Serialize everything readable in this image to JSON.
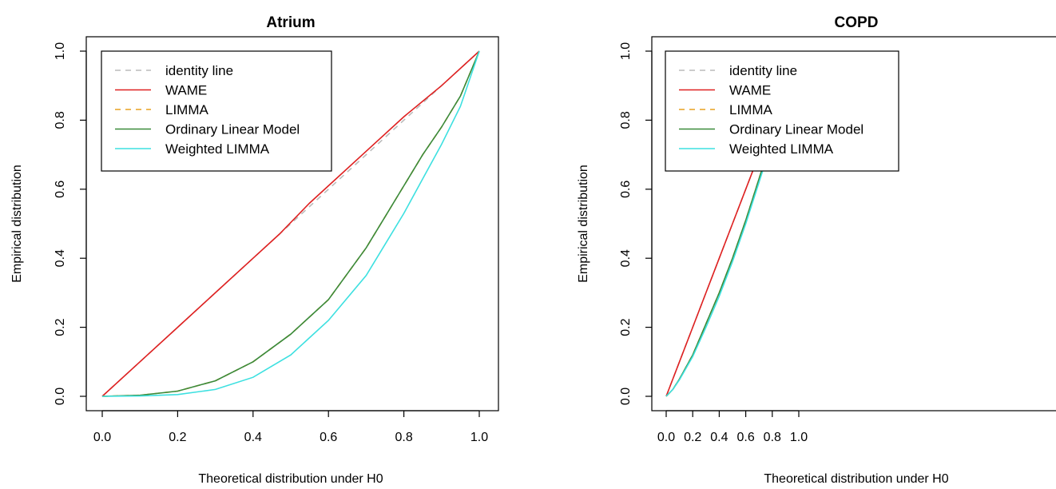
{
  "chart_data": [
    {
      "type": "line",
      "title": "Atrium",
      "xlabel": "Theoretical distribution under H0",
      "ylabel": "Empirical distribution",
      "xlim": [
        0,
        1
      ],
      "ylim": [
        0,
        1
      ],
      "x_ticks": [
        "0.0",
        "0.2",
        "0.4",
        "0.6",
        "0.8",
        "1.0"
      ],
      "y_ticks": [
        "0.0",
        "0.2",
        "0.4",
        "0.6",
        "0.8",
        "1.0"
      ],
      "legend_position": "top-left",
      "series": [
        {
          "name": "identity line",
          "color": "#bbbbbb",
          "dash": "dashed",
          "x": [
            0,
            1
          ],
          "y": [
            0,
            1
          ]
        },
        {
          "name": "WAME",
          "color": "#df2020",
          "dash": "solid",
          "x": [
            0,
            0.1,
            0.2,
            0.3,
            0.4,
            0.47,
            0.55,
            0.6,
            0.7,
            0.8,
            0.9,
            1.0
          ],
          "y": [
            0,
            0.1,
            0.2,
            0.3,
            0.4,
            0.47,
            0.56,
            0.61,
            0.71,
            0.81,
            0.9,
            1.0
          ]
        },
        {
          "name": "LIMMA",
          "color": "#e8a020",
          "dash": "dashed",
          "x": [
            0,
            0.1,
            0.2,
            0.3,
            0.4,
            0.5,
            0.6,
            0.7,
            0.75,
            0.8,
            0.85,
            0.9,
            0.95,
            1.0
          ],
          "y": [
            0,
            0.003,
            0.015,
            0.045,
            0.1,
            0.18,
            0.28,
            0.43,
            0.52,
            0.61,
            0.7,
            0.78,
            0.87,
            1.0
          ]
        },
        {
          "name": "Ordinary Linear Model",
          "color": "#3a8a3a",
          "dash": "solid",
          "x": [
            0,
            0.1,
            0.2,
            0.3,
            0.4,
            0.5,
            0.6,
            0.7,
            0.75,
            0.8,
            0.85,
            0.9,
            0.95,
            1.0
          ],
          "y": [
            0,
            0.003,
            0.015,
            0.045,
            0.1,
            0.18,
            0.28,
            0.43,
            0.52,
            0.61,
            0.7,
            0.78,
            0.87,
            1.0
          ]
        },
        {
          "name": "Weighted LIMMA",
          "color": "#3de0e0",
          "dash": "solid",
          "x": [
            0,
            0.1,
            0.2,
            0.3,
            0.4,
            0.5,
            0.6,
            0.7,
            0.75,
            0.8,
            0.85,
            0.9,
            0.95,
            1.0
          ],
          "y": [
            0,
            0.001,
            0.005,
            0.02,
            0.055,
            0.12,
            0.22,
            0.35,
            0.44,
            0.53,
            0.63,
            0.73,
            0.84,
            1.0
          ]
        }
      ]
    },
    {
      "type": "line",
      "title": "COPD",
      "xlabel": "Theoretical distribution under H0",
      "ylabel": "Empirical distribution",
      "xlim": [
        0,
        1
      ],
      "ylim": [
        0,
        1
      ],
      "x_ticks": [
        "0.0",
        "0.2",
        "0.4",
        "0.6",
        "0.8",
        "1.0"
      ],
      "y_ticks": [
        "0.0",
        "0.2",
        "0.4",
        "0.6",
        "0.8",
        "1.0"
      ],
      "legend_position": "top-left",
      "series": [
        {
          "name": "identity line",
          "color": "#bbbbbb",
          "dash": "dashed",
          "x": [
            0,
            1
          ],
          "y": [
            0,
            1
          ]
        },
        {
          "name": "WAME",
          "color": "#df2020",
          "dash": "solid",
          "x": [
            0,
            0.1,
            0.2,
            0.3,
            0.4,
            0.5,
            0.6,
            0.7,
            0.8,
            0.9,
            1.0
          ],
          "y": [
            0,
            0.1,
            0.2,
            0.3,
            0.4,
            0.5,
            0.6,
            0.7,
            0.8,
            0.9,
            1.0
          ]
        },
        {
          "name": "LIMMA",
          "color": "#e8a020",
          "dash": "dashed",
          "x": [
            0,
            0.05,
            0.1,
            0.2,
            0.3,
            0.4,
            0.5,
            0.6,
            0.7,
            0.8,
            0.9,
            1.0
          ],
          "y": [
            0,
            0.02,
            0.05,
            0.12,
            0.21,
            0.3,
            0.4,
            0.51,
            0.63,
            0.75,
            0.87,
            1.0
          ]
        },
        {
          "name": "Ordinary Linear Model",
          "color": "#3a8a3a",
          "dash": "solid",
          "x": [
            0,
            0.05,
            0.1,
            0.2,
            0.3,
            0.4,
            0.5,
            0.6,
            0.7,
            0.8,
            0.9,
            1.0
          ],
          "y": [
            0,
            0.02,
            0.05,
            0.12,
            0.21,
            0.3,
            0.4,
            0.51,
            0.63,
            0.75,
            0.87,
            1.0
          ]
        },
        {
          "name": "Weighted LIMMA",
          "color": "#3de0e0",
          "dash": "solid",
          "x": [
            0,
            0.05,
            0.1,
            0.2,
            0.3,
            0.4,
            0.5,
            0.6,
            0.7,
            0.8,
            0.9,
            1.0
          ],
          "y": [
            0,
            0.02,
            0.048,
            0.115,
            0.2,
            0.29,
            0.39,
            0.5,
            0.62,
            0.74,
            0.86,
            1.0
          ]
        }
      ]
    }
  ]
}
